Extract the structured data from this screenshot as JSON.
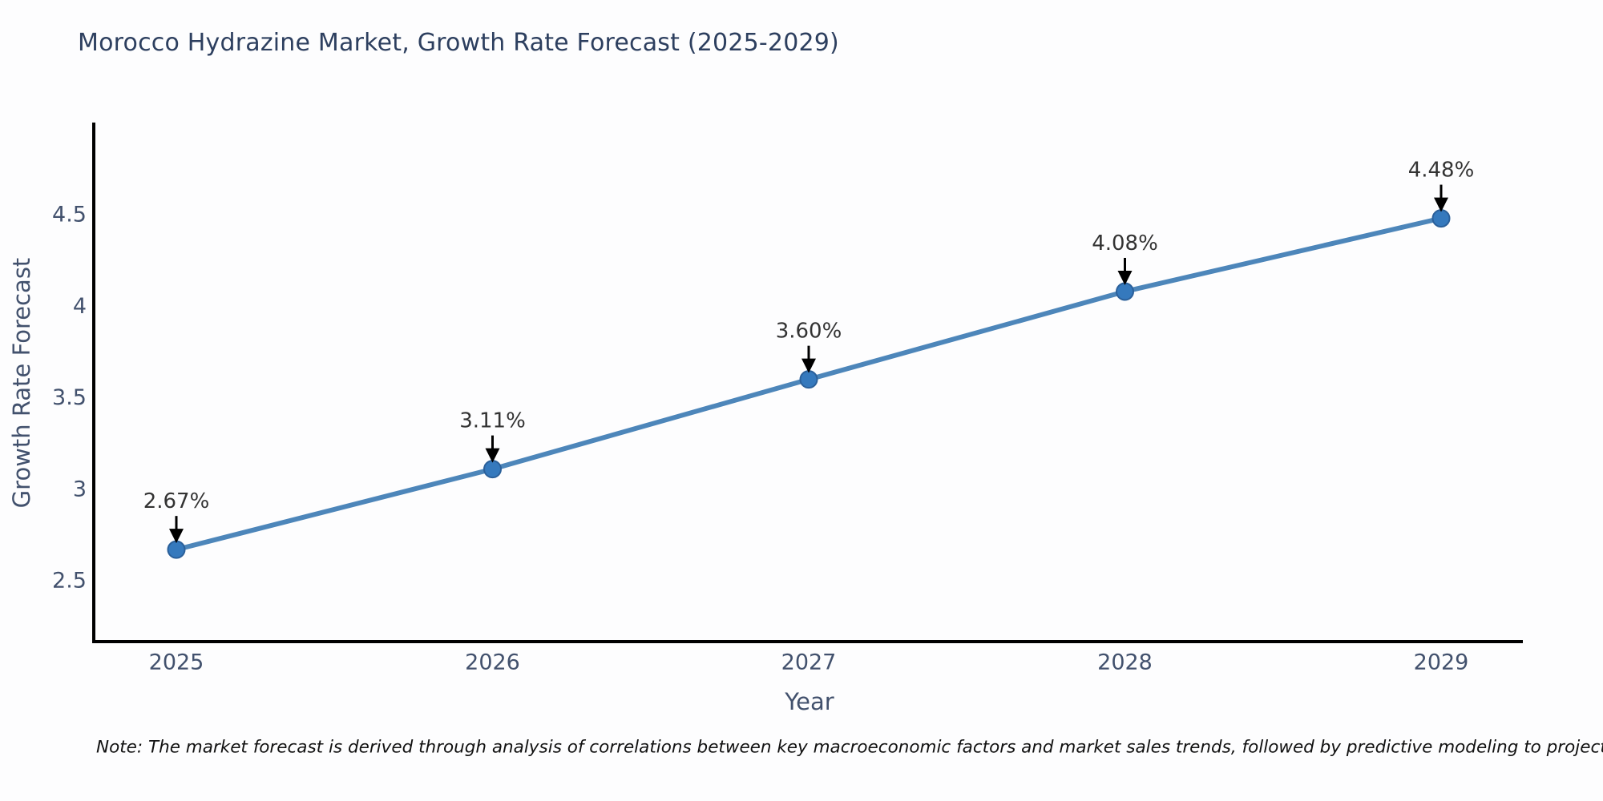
{
  "title": "Morocco Hydrazine Market, Growth Rate Forecast (2025-2029)",
  "note": "Note: The market forecast is derived through analysis of correlations between key macroeconomic factors and market sales trends, followed by predictive modeling to project future sales",
  "chart_data": {
    "type": "line",
    "title": "Morocco Hydrazine Market, Growth Rate Forecast (2025-2029)",
    "xlabel": "Year",
    "ylabel": "Growth Rate Forecast",
    "x_tick_labels": [
      "2025",
      "2026",
      "2027",
      "2028",
      "2029"
    ],
    "x": [
      2025,
      2026,
      2027,
      2028,
      2029
    ],
    "series": [
      {
        "name": "Growth Rate Forecast",
        "values": [
          2.67,
          3.11,
          3.6,
          4.08,
          4.48
        ]
      }
    ],
    "point_labels": [
      "2.67%",
      "3.11%",
      "3.60%",
      "4.08%",
      "4.48%"
    ],
    "y_ticks": [
      4.5,
      4.0,
      3.5,
      3.0,
      2.5
    ],
    "y_tick_labels": [
      "4.5",
      "4",
      "3.5",
      "3",
      "2.5"
    ],
    "ylim": [
      2.2,
      4.95
    ],
    "grid": false,
    "legend": "none",
    "annotation_arrows": "black arrow pointing down from each value label to its marker",
    "colors": {
      "line": "#4d86ba",
      "marker_fill": "#3579bd",
      "marker_edge": "#2b609a",
      "axis_line": "#000000",
      "title_text": "#2d3f5f",
      "tick_text": "#42516d",
      "annotation_text": "#333333",
      "note_text": "#111111",
      "background": "#fdfdfe"
    }
  }
}
